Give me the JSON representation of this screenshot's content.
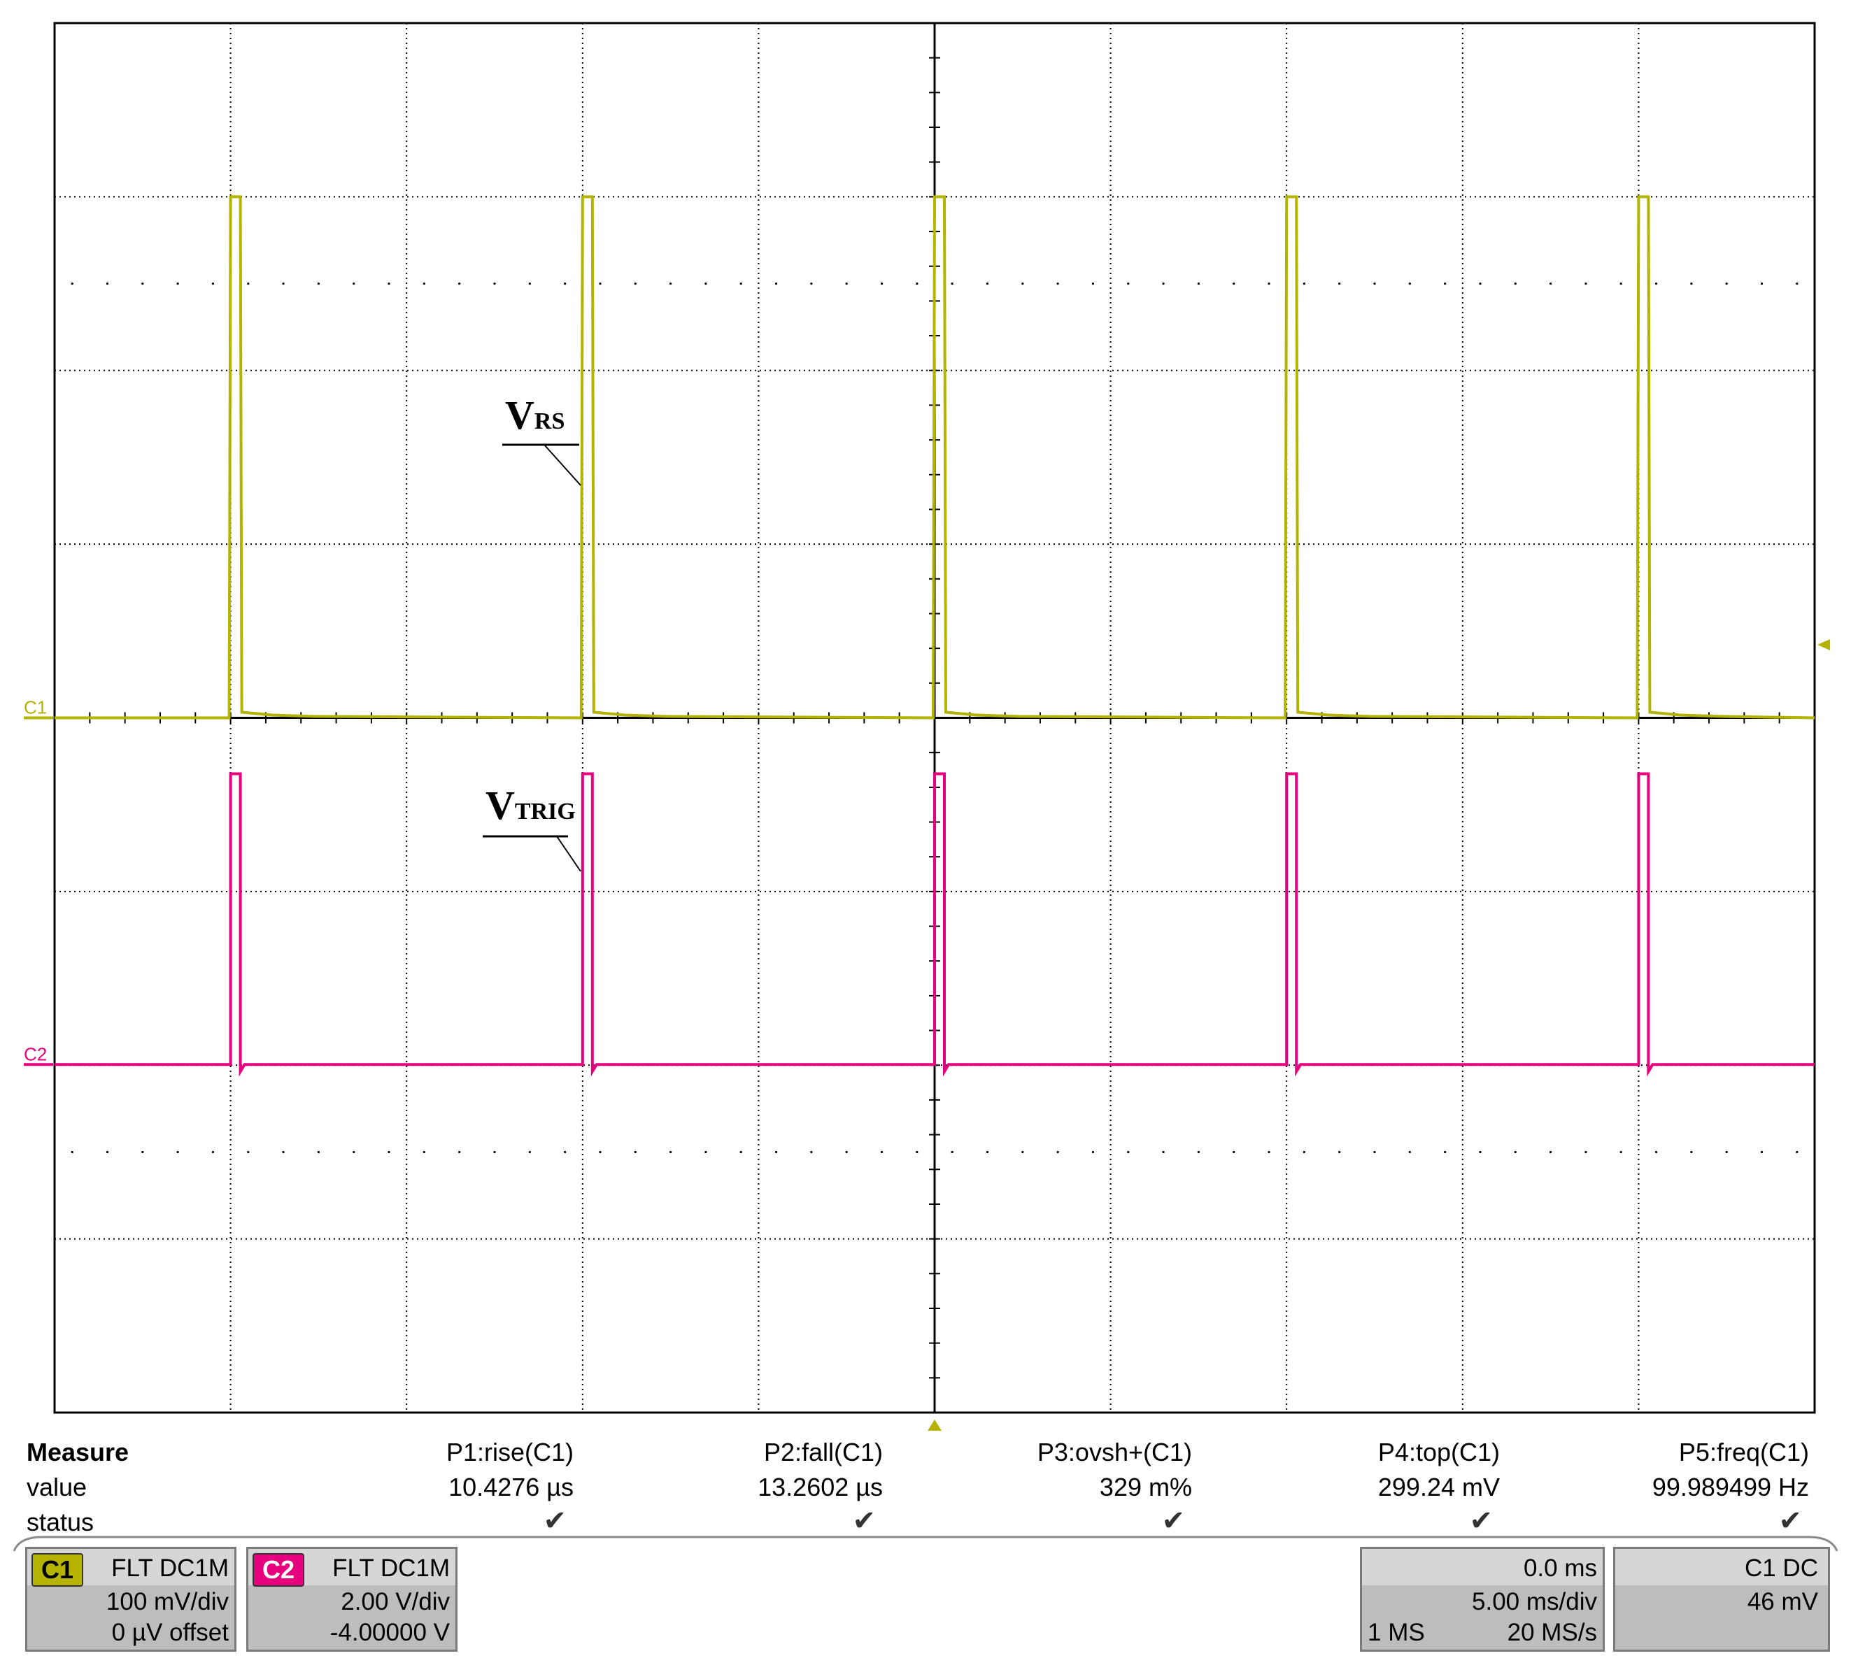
{
  "scope": {
    "colors": {
      "c1": "#b3b300",
      "c2": "#e6007e",
      "grid": "#000000",
      "background": "#ffffff"
    },
    "grid": {
      "hdiv": 10,
      "vdiv": 8
    },
    "channels": [
      {
        "id": "C1",
        "label": "C1",
        "annotation_main": "V",
        "annotation_sub": "RS",
        "volts_per_div": 0.1,
        "pulse_high_mv": 299.24,
        "pulse_times_ms": [
          -20,
          -10,
          0,
          10,
          20
        ]
      },
      {
        "id": "C2",
        "label": "C2",
        "annotation_main": "V",
        "annotation_sub": "TRIG"
      }
    ],
    "time_per_div_ms": 5.0
  },
  "measure": {
    "title": "Measure",
    "row_value": "value",
    "row_status": "status",
    "params": [
      {
        "name": "P1:rise(C1)",
        "value": "10.4276 µs",
        "status": "✔"
      },
      {
        "name": "P2:fall(C1)",
        "value": "13.2602 µs",
        "status": "✔"
      },
      {
        "name": "P3:ovsh+(C1)",
        "value": "329 m%",
        "status": "✔"
      },
      {
        "name": "P4:top(C1)",
        "value": "299.24 mV",
        "status": "✔"
      },
      {
        "name": "P5:freq(C1)",
        "value": "99.989499 Hz",
        "status": "✔"
      }
    ]
  },
  "c1_box": {
    "badge": "C1",
    "coupling": "FLT  DC1M",
    "scale": "100 mV/div",
    "offset": "0 µV offset"
  },
  "c2_box": {
    "badge": "C2",
    "coupling": "FLT  DC1M",
    "scale": "2.00 V/div",
    "offset": "-4.00000 V"
  },
  "timebase": {
    "delay": "0.0 ms",
    "per_div": "5.00 ms/div",
    "samples": "1 MS",
    "rate": "20 MS/s"
  },
  "trigger": {
    "source": "C1  DC",
    "level": "46 mV"
  }
}
